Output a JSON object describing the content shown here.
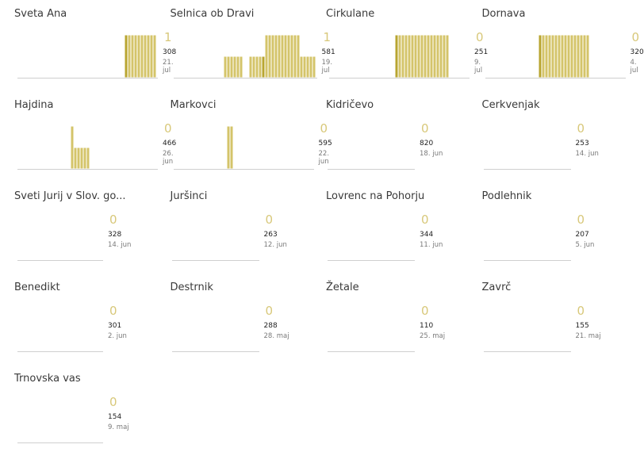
{
  "colors": {
    "bar": "#d4c46a",
    "bar_today": "#b8a530",
    "bar_outline": "#ffffff",
    "axis": "#cfcfcf",
    "big_number": "#d8c87a"
  },
  "chart_data": [
    {
      "type": "bar",
      "name": "Sveta Ana",
      "today": "1",
      "count": "308",
      "date": "21. jul",
      "values": [
        0,
        0,
        0,
        0,
        0,
        0,
        0,
        0,
        0,
        0,
        0,
        0,
        0,
        0,
        0,
        0,
        0,
        1,
        1,
        1,
        1,
        1,
        1,
        1,
        1,
        1,
        1
      ],
      "today_flags": [
        0,
        0,
        0,
        0,
        0,
        0,
        0,
        0,
        0,
        0,
        0,
        0,
        0,
        0,
        0,
        0,
        0,
        1,
        0,
        0,
        0,
        0,
        0,
        0,
        0,
        0,
        0
      ],
      "ylim": [
        0,
        1
      ]
    },
    {
      "type": "bar",
      "name": "Selnica ob Dravi",
      "today": "1",
      "count": "581",
      "date": "19. jul",
      "values": [
        1,
        1,
        1,
        1,
        1,
        1,
        0,
        0,
        1,
        1,
        1,
        1,
        1,
        2,
        2,
        2,
        2,
        2,
        2,
        2,
        2,
        2,
        2,
        2,
        1,
        1,
        1,
        1,
        1
      ],
      "today_flags": [
        0,
        0,
        0,
        0,
        0,
        0,
        0,
        0,
        0,
        0,
        0,
        0,
        1,
        0,
        0,
        0,
        0,
        0,
        0,
        0,
        0,
        0,
        0,
        0,
        0,
        0,
        0,
        0,
        0
      ],
      "ylim": [
        0,
        2
      ]
    },
    {
      "type": "bar",
      "name": "Cirkulane",
      "today": "0",
      "count": "251",
      "date": "9. jul",
      "values": [
        0,
        0,
        0,
        0,
        1,
        1,
        1,
        1,
        1,
        1,
        1,
        1,
        1,
        1,
        1,
        1,
        1,
        1,
        1,
        1,
        1,
        0,
        0,
        0,
        0,
        0,
        0
      ],
      "today_flags": [
        0,
        0,
        0,
        0,
        1,
        0,
        0,
        0,
        0,
        0,
        0,
        0,
        0,
        0,
        0,
        0,
        0,
        0,
        0,
        0,
        0,
        0,
        0,
        0,
        0,
        0,
        0
      ],
      "ylim": [
        0,
        1
      ]
    },
    {
      "type": "bar",
      "name": "Dornava",
      "today": "0",
      "count": "320",
      "date": "4. jul",
      "values": [
        1,
        1,
        1,
        1,
        1,
        1,
        1,
        1,
        1,
        1,
        1,
        1,
        1,
        1,
        1,
        1,
        0,
        0,
        0,
        0,
        0,
        0,
        0,
        0,
        0,
        0,
        0
      ],
      "today_flags": [
        1,
        0,
        0,
        0,
        0,
        0,
        0,
        0,
        0,
        0,
        0,
        0,
        0,
        0,
        0,
        0,
        0,
        0,
        0,
        0,
        0,
        0,
        0,
        0,
        0,
        0,
        0
      ],
      "ylim": [
        0,
        1
      ]
    },
    {
      "type": "bar",
      "name": "Hajdina",
      "today": "0",
      "count": "466",
      "date": "26. jun",
      "values": [
        2,
        1,
        1,
        1,
        1,
        1,
        0,
        0,
        0,
        0,
        0,
        0,
        0,
        0,
        0,
        0,
        0,
        0,
        0,
        0,
        0,
        0,
        0,
        0,
        0,
        0,
        0
      ],
      "today_flags": [
        0,
        0,
        0,
        0,
        0,
        0,
        0,
        0,
        0,
        0,
        0,
        0,
        0,
        0,
        0,
        0,
        0,
        0,
        0,
        0,
        0,
        0,
        0,
        0,
        0,
        0,
        0
      ],
      "ylim": [
        0,
        2
      ]
    },
    {
      "type": "bar",
      "name": "Markovci",
      "today": "0",
      "count": "595",
      "date": "22. jun",
      "values": [
        1,
        1,
        0,
        0,
        0,
        0,
        0,
        0,
        0,
        0,
        0,
        0,
        0,
        0,
        0,
        0,
        0,
        0,
        0,
        0,
        0,
        0,
        0,
        0,
        0,
        0,
        0
      ],
      "today_flags": [
        0,
        0,
        0,
        0,
        0,
        0,
        0,
        0,
        0,
        0,
        0,
        0,
        0,
        0,
        0,
        0,
        0,
        0,
        0,
        0,
        0,
        0,
        0,
        0,
        0,
        0,
        0
      ],
      "ylim": [
        0,
        1
      ]
    },
    {
      "type": "bar",
      "name": "Kidričevo",
      "today": "0",
      "count": "820",
      "date": "18. jun",
      "values": [],
      "today_flags": [],
      "ylim": [
        0,
        1
      ]
    },
    {
      "type": "bar",
      "name": "Cerkvenjak",
      "today": "0",
      "count": "253",
      "date": "14. jun",
      "values": [],
      "today_flags": [],
      "ylim": [
        0,
        1
      ]
    },
    {
      "type": "bar",
      "name": "Sveti Jurij v Slov. go...",
      "today": "0",
      "count": "328",
      "date": "14. jun",
      "values": [],
      "today_flags": [],
      "ylim": [
        0,
        1
      ]
    },
    {
      "type": "bar",
      "name": "Juršinci",
      "today": "0",
      "count": "263",
      "date": "12. jun",
      "values": [],
      "today_flags": [],
      "ylim": [
        0,
        1
      ]
    },
    {
      "type": "bar",
      "name": "Lovrenc na Pohorju",
      "today": "0",
      "count": "344",
      "date": "11. jun",
      "values": [],
      "today_flags": [],
      "ylim": [
        0,
        1
      ]
    },
    {
      "type": "bar",
      "name": "Podlehnik",
      "today": "0",
      "count": "207",
      "date": "5. jun",
      "values": [],
      "today_flags": [],
      "ylim": [
        0,
        1
      ]
    },
    {
      "type": "bar",
      "name": "Benedikt",
      "today": "0",
      "count": "301",
      "date": "2. jun",
      "values": [],
      "today_flags": [],
      "ylim": [
        0,
        1
      ]
    },
    {
      "type": "bar",
      "name": "Destrnik",
      "today": "0",
      "count": "288",
      "date": "28. maj",
      "values": [],
      "today_flags": [],
      "ylim": [
        0,
        1
      ]
    },
    {
      "type": "bar",
      "name": "Žetale",
      "today": "0",
      "count": "110",
      "date": "25. maj",
      "values": [],
      "today_flags": [],
      "ylim": [
        0,
        1
      ]
    },
    {
      "type": "bar",
      "name": "Zavrč",
      "today": "0",
      "count": "155",
      "date": "21. maj",
      "values": [],
      "today_flags": [],
      "ylim": [
        0,
        1
      ]
    },
    {
      "type": "bar",
      "name": "Trnovska vas",
      "today": "0",
      "count": "154",
      "date": "9. maj",
      "values": [],
      "today_flags": [],
      "ylim": [
        0,
        1
      ]
    }
  ]
}
